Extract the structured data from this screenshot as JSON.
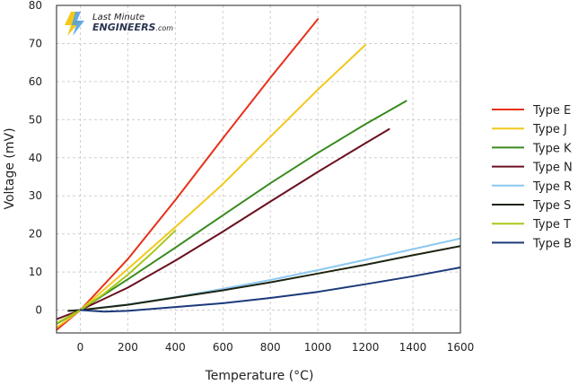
{
  "chart_data": {
    "type": "line",
    "title": "",
    "xlabel": "Temperature (°C)",
    "ylabel": "Voltage (mV)",
    "xlim": [
      -100,
      1600
    ],
    "ylim": [
      -6,
      80
    ],
    "xticks": [
      0,
      200,
      400,
      600,
      800,
      1000,
      1200,
      1400,
      1600
    ],
    "yticks": [
      0,
      10,
      20,
      30,
      40,
      50,
      60,
      70,
      80
    ],
    "grid": true,
    "legend_position": "right",
    "series": [
      {
        "name": "Type E",
        "color": "#e8311a",
        "x": [
          -100,
          0,
          200,
          400,
          600,
          800,
          1000
        ],
        "y": [
          -5.2,
          0,
          13.4,
          28.9,
          45.1,
          61.0,
          76.4
        ]
      },
      {
        "name": "Type J",
        "color": "#f2c81c",
        "x": [
          -100,
          0,
          200,
          400,
          600,
          800,
          1000,
          1200
        ],
        "y": [
          -4.6,
          0,
          10.8,
          21.8,
          33.1,
          45.5,
          57.9,
          69.6
        ]
      },
      {
        "name": "Type K",
        "color": "#3a8a1e",
        "x": [
          -100,
          0,
          200,
          400,
          600,
          800,
          1000,
          1200,
          1372
        ],
        "y": [
          -3.6,
          0,
          8.1,
          16.4,
          24.9,
          33.3,
          41.3,
          48.8,
          54.9
        ]
      },
      {
        "name": "Type N",
        "color": "#6a1020",
        "x": [
          -100,
          0,
          200,
          400,
          600,
          800,
          1000,
          1200,
          1300
        ],
        "y": [
          -2.4,
          0,
          5.9,
          13.0,
          20.6,
          28.5,
          36.3,
          43.8,
          47.5
        ]
      },
      {
        "name": "Type R",
        "color": "#8cc8f0",
        "x": [
          -50,
          0,
          200,
          400,
          600,
          800,
          1000,
          1200,
          1400,
          1600
        ],
        "y": [
          -0.2,
          0,
          1.5,
          3.4,
          5.6,
          7.9,
          10.5,
          13.2,
          16.0,
          18.8
        ]
      },
      {
        "name": "Type S",
        "color": "#1c2410",
        "x": [
          -50,
          0,
          200,
          400,
          600,
          800,
          1000,
          1200,
          1400,
          1600
        ],
        "y": [
          -0.2,
          0,
          1.4,
          3.3,
          5.2,
          7.3,
          9.6,
          11.9,
          14.4,
          16.8
        ]
      },
      {
        "name": "Type T",
        "color": "#a8c81c",
        "x": [
          -100,
          0,
          100,
          200,
          300,
          400
        ],
        "y": [
          -3.4,
          0,
          4.3,
          9.3,
          14.9,
          20.9
        ]
      },
      {
        "name": "Type B",
        "color": "#1a3a7a",
        "x": [
          0,
          100,
          200,
          400,
          600,
          800,
          1000,
          1200,
          1400,
          1600
        ],
        "y": [
          0,
          -0.4,
          -0.2,
          0.8,
          1.8,
          3.2,
          4.8,
          6.8,
          8.9,
          11.2
        ]
      }
    ]
  },
  "logo": {
    "line1": "Last Minute",
    "line2": "ENGINEERS",
    "suffix": ".com"
  }
}
